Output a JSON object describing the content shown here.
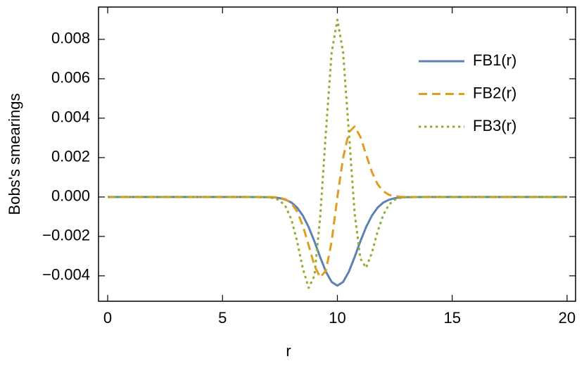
{
  "chart_data": {
    "type": "line",
    "x_label": "r",
    "y_label": "Bobs's smearings",
    "x": [
      0,
      6,
      7,
      7.25,
      7.5,
      7.75,
      8,
      8.25,
      8.5,
      8.75,
      9,
      9.25,
      9.5,
      9.75,
      10,
      10.25,
      10.5,
      10.75,
      11,
      11.25,
      11.5,
      11.75,
      12,
      12.25,
      12.5,
      12.75,
      13,
      14,
      20
    ],
    "series": [
      {
        "name": "FB1(r)",
        "color": "#5e81b5",
        "dash": "solid",
        "values": [
          0,
          0,
          -1e-05,
          -2e-05,
          -6e-05,
          -0.00014,
          -0.00028,
          -0.00054,
          -0.00095,
          -0.00153,
          -0.00225,
          -0.00305,
          -0.00379,
          -0.00431,
          -0.0045,
          -0.00431,
          -0.00379,
          -0.00305,
          -0.00225,
          -0.00153,
          -0.00095,
          -0.00054,
          -0.00028,
          -0.00014,
          -6e-05,
          -2e-05,
          -1e-05,
          0,
          0
        ]
      },
      {
        "name": "FB2(r)",
        "color": "#e19c24",
        "dash": "dashed",
        "values": [
          0,
          0,
          0,
          -1e-05,
          -4e-05,
          -0.00012,
          -0.00032,
          -0.00074,
          -0.00146,
          -0.00245,
          -0.00348,
          -0.00408,
          -0.00374,
          -0.00226,
          0,
          0.00199,
          0.00328,
          0.00358,
          0.00306,
          0.00216,
          0.00128,
          0.00065,
          0.00029,
          0.00011,
          4e-05,
          1e-05,
          0,
          0,
          0
        ]
      },
      {
        "name": "FB3(r)",
        "color": "#8fb032",
        "dash": "dotted",
        "values": [
          0,
          0,
          -1e-05,
          -6e-05,
          -0.00018,
          -0.00049,
          -0.00115,
          -0.00226,
          -0.00365,
          -0.00461,
          -0.004,
          -0.00104,
          0.00329,
          0.00733,
          0.009,
          0.00733,
          0.00329,
          -0.00081,
          -0.00312,
          -0.00359,
          -0.00284,
          -0.00176,
          -0.0009,
          -0.00038,
          -0.00014,
          -4e-05,
          -1e-05,
          0,
          0
        ]
      }
    ],
    "xlim": [
      -0.4,
      20.37
    ],
    "xticks": [
      0,
      5,
      10,
      15,
      20
    ],
    "ylim": [
      -0.00529,
      0.00964
    ],
    "yticks": [
      {
        "value": -0.004,
        "label": "−0.004"
      },
      {
        "value": -0.002,
        "label": "−0.002"
      },
      {
        "value": 0,
        "label": "0.000"
      },
      {
        "value": 0.002,
        "label": "0.002"
      },
      {
        "value": 0.004,
        "label": "0.004"
      },
      {
        "value": 0.006,
        "label": "0.006"
      },
      {
        "value": 0.008,
        "label": "0.008"
      }
    ],
    "legend": "upper-right"
  }
}
